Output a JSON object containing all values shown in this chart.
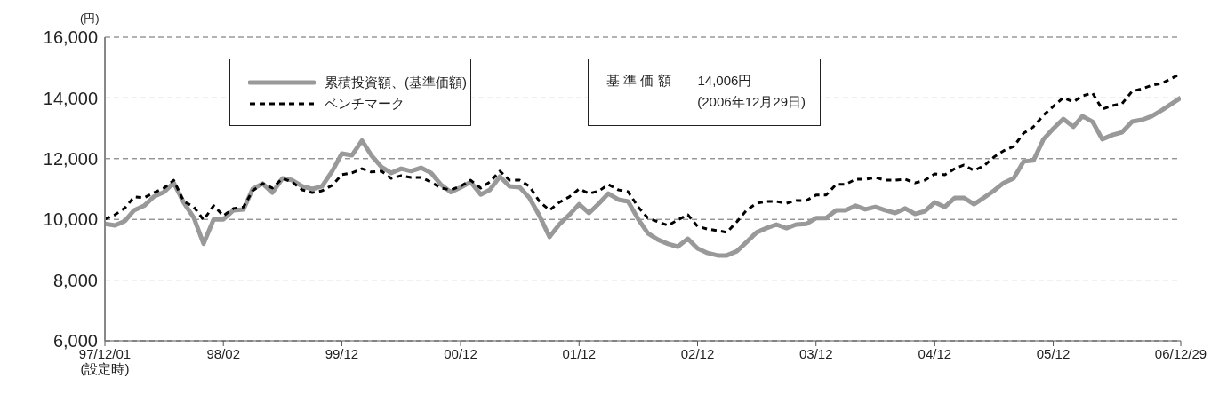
{
  "chart_data": {
    "type": "line",
    "ylabel": "(円)",
    "annotations": [
      "基 準 価 額　　14,006円",
      "(2006年12月29日)"
    ],
    "x": [
      "1997-12-01",
      "1998-01",
      "1998-02",
      "1998-03",
      "1998-04",
      "1998-05",
      "1998-06",
      "1998-07",
      "1998-08",
      "1998-09",
      "1998-10",
      "1998-11",
      "1998-12",
      "1999-01",
      "1999-02",
      "1999-03",
      "1999-04",
      "1999-05",
      "1999-06",
      "1999-07",
      "1999-08",
      "1999-09",
      "1999-10",
      "1999-11",
      "1999-12",
      "2000-01",
      "2000-02",
      "2000-03",
      "2000-04",
      "2000-05",
      "2000-06",
      "2000-07",
      "2000-08",
      "2000-09",
      "2000-10",
      "2000-11",
      "2000-12",
      "2001-01",
      "2001-02",
      "2001-03",
      "2001-04",
      "2001-05",
      "2001-06",
      "2001-07",
      "2001-08",
      "2001-09",
      "2001-10",
      "2001-11",
      "2001-12",
      "2002-01",
      "2002-02",
      "2002-03",
      "2002-04",
      "2002-05",
      "2002-06",
      "2002-07",
      "2002-08",
      "2002-09",
      "2002-10",
      "2002-11",
      "2002-12",
      "2003-01",
      "2003-02",
      "2003-03",
      "2003-04",
      "2003-05",
      "2003-06",
      "2003-07",
      "2003-08",
      "2003-09",
      "2003-10",
      "2003-11",
      "2003-12",
      "2004-01",
      "2004-02",
      "2004-03",
      "2004-04",
      "2004-05",
      "2004-06",
      "2004-07",
      "2004-08",
      "2004-09",
      "2004-10",
      "2004-11",
      "2004-12",
      "2005-01",
      "2005-02",
      "2005-03",
      "2005-04",
      "2005-05",
      "2005-06",
      "2005-07",
      "2005-08",
      "2005-09",
      "2005-10",
      "2005-11",
      "2005-12",
      "2006-01",
      "2006-02",
      "2006-03",
      "2006-04",
      "2006-05",
      "2006-06",
      "2006-07",
      "2006-08",
      "2006-09",
      "2006-10",
      "2006-11",
      "2006-12-29"
    ],
    "series": [
      {
        "name": "累積投資額、(基準価額)",
        "color": "#999999",
        "line_style": "solid",
        "values": [
          9850,
          9800,
          9950,
          10300,
          10450,
          10750,
          10900,
          11200,
          10550,
          10050,
          9200,
          10000,
          10000,
          10300,
          10330,
          11000,
          11180,
          10880,
          11350,
          11290,
          11090,
          11000,
          11090,
          11580,
          12170,
          12110,
          12600,
          12110,
          11730,
          11530,
          11670,
          11590,
          11700,
          11530,
          11150,
          10900,
          11050,
          11230,
          10820,
          10970,
          11410,
          11090,
          11060,
          10710,
          10120,
          9420,
          9830,
          10150,
          10500,
          10210,
          10530,
          10850,
          10650,
          10590,
          10010,
          9540,
          9330,
          9190,
          9100,
          9360,
          9040,
          8890,
          8810,
          8810,
          8950,
          9250,
          9570,
          9710,
          9830,
          9710,
          9830,
          9850,
          10040,
          10040,
          10300,
          10300,
          10450,
          10330,
          10410,
          10300,
          10210,
          10360,
          10180,
          10270,
          10560,
          10410,
          10710,
          10710,
          10500,
          10710,
          10940,
          11200,
          11350,
          11910,
          11940,
          12640,
          12990,
          13310,
          13050,
          13400,
          13220,
          12640,
          12780,
          12870,
          13220,
          13280,
          13400,
          13600,
          14006
        ]
      },
      {
        "name": "ベンチマーク",
        "color": "#000000",
        "line_style": "dashed",
        "values": [
          10010,
          10150,
          10380,
          10740,
          10710,
          10880,
          11030,
          11290,
          10590,
          10410,
          9980,
          10450,
          10120,
          10360,
          10410,
          10940,
          11180,
          11030,
          11350,
          11230,
          10970,
          10880,
          10940,
          11120,
          11470,
          11530,
          11670,
          11560,
          11590,
          11350,
          11440,
          11380,
          11380,
          11230,
          11030,
          10970,
          11090,
          11290,
          11030,
          11230,
          11590,
          11290,
          11290,
          11090,
          10590,
          10300,
          10560,
          10740,
          11000,
          10850,
          10940,
          11150,
          10970,
          10910,
          10410,
          10040,
          9920,
          9800,
          9980,
          10150,
          9770,
          9680,
          9630,
          9570,
          9920,
          10300,
          10530,
          10590,
          10590,
          10530,
          10620,
          10620,
          10800,
          10800,
          11150,
          11150,
          11320,
          11320,
          11380,
          11290,
          11290,
          11320,
          11200,
          11290,
          11500,
          11470,
          11670,
          11790,
          11610,
          11760,
          12050,
          12260,
          12400,
          12840,
          13050,
          13430,
          13720,
          14010,
          13870,
          14070,
          14160,
          13630,
          13750,
          13810,
          14220,
          14300,
          14420,
          14480,
          14800
        ]
      }
    ],
    "xlim": [
      "1997-12-01",
      "2006-12-29"
    ],
    "xticks": [
      {
        "value": "1997-12-01",
        "label": "97/12/01\n(設定時)"
      },
      {
        "value": "1998-12",
        "label": "98/02"
      },
      {
        "value": "1999-12",
        "label": "99/12"
      },
      {
        "value": "2000-12",
        "label": "00/12"
      },
      {
        "value": "2001-12",
        "label": "01/12"
      },
      {
        "value": "2002-12",
        "label": "02/12"
      },
      {
        "value": "2003-12",
        "label": "03/12"
      },
      {
        "value": "2004-12",
        "label": "04/12"
      },
      {
        "value": "2005-12",
        "label": "05/12"
      },
      {
        "value": "2006-12-29",
        "label": "06/12/29"
      }
    ],
    "ylim": [
      6000,
      16000
    ],
    "yticks": [
      {
        "value": 6000,
        "label": "6,000"
      },
      {
        "value": 8000,
        "label": "8,000"
      },
      {
        "value": 10000,
        "label": "10,000"
      },
      {
        "value": 12000,
        "label": "12,000"
      },
      {
        "value": 14000,
        "label": "14,000"
      },
      {
        "value": 16000,
        "label": "16,000"
      }
    ],
    "grid": "y",
    "legend": "top left",
    "marker": "none"
  }
}
